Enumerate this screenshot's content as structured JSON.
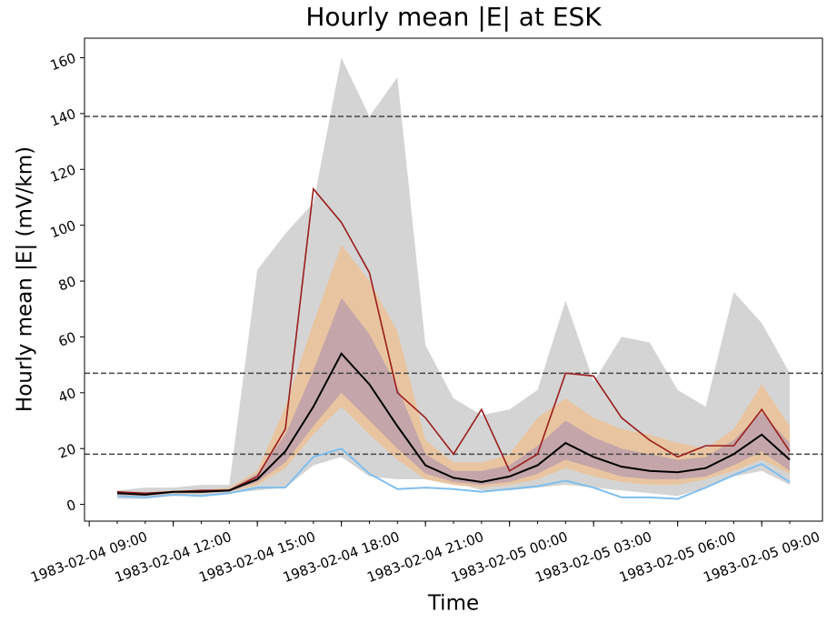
{
  "chart_data": {
    "type": "line",
    "title": "Hourly mean |E| at ESK",
    "x_label": "Time",
    "y_label": "Hourly mean |E| (mV/km)",
    "x": [
      "1983-02-04 10:00",
      "1983-02-04 11:00",
      "1983-02-04 12:00",
      "1983-02-04 13:00",
      "1983-02-04 14:00",
      "1983-02-04 15:00",
      "1983-02-04 16:00",
      "1983-02-04 17:00",
      "1983-02-04 18:00",
      "1983-02-04 19:00",
      "1983-02-04 20:00",
      "1983-02-04 21:00",
      "1983-02-04 22:00",
      "1983-02-04 23:00",
      "1983-02-05 00:00",
      "1983-02-05 01:00",
      "1983-02-05 02:00",
      "1983-02-05 03:00",
      "1983-02-05 04:00",
      "1983-02-05 05:00",
      "1983-02-05 06:00",
      "1983-02-05 07:00",
      "1983-02-05 08:00",
      "1983-02-05 09:00",
      "1983-02-05 10:00"
    ],
    "xlim": [
      "1983-02-04 08:50",
      "1983-02-05 11:10"
    ],
    "xticks": [
      "1983-02-04 09:00",
      "1983-02-04 12:00",
      "1983-02-04 15:00",
      "1983-02-04 18:00",
      "1983-02-04 21:00",
      "1983-02-05 00:00",
      "1983-02-05 03:00",
      "1983-02-05 06:00",
      "1983-02-05 09:00"
    ],
    "ylim": [
      -6,
      167
    ],
    "yticks": [
      0,
      20,
      40,
      60,
      80,
      100,
      120,
      140,
      160
    ],
    "hlines": [
      139,
      47,
      18
    ],
    "bands": [
      {
        "color": "#d4d4d4",
        "upper": [
          5,
          6,
          6,
          7,
          7,
          84,
          97,
          108,
          160,
          139,
          153,
          57,
          38,
          32,
          34,
          41,
          73,
          44,
          60,
          58,
          41,
          35,
          76,
          65,
          47
        ],
        "lower": [
          2,
          2,
          3,
          3,
          4,
          5,
          6,
          14,
          17,
          10,
          9,
          9,
          8,
          5,
          5,
          6,
          7,
          6,
          5,
          4,
          3,
          6,
          10,
          12,
          7
        ]
      },
      {
        "color": "#e8c5a0",
        "upper": [
          4.5,
          4,
          5,
          5,
          6,
          12,
          35,
          65,
          93,
          80,
          62,
          23,
          15,
          15,
          18,
          31,
          38,
          31,
          27,
          25,
          22,
          20,
          27,
          43,
          28
        ],
        "lower": [
          3,
          3,
          3.5,
          4,
          4.5,
          7,
          13,
          25,
          35,
          25,
          16,
          9,
          7,
          6,
          7,
          9,
          13,
          10,
          8,
          7,
          7,
          9,
          12,
          16,
          11
        ]
      },
      {
        "color": "#c4a6aa",
        "upper": [
          4,
          4,
          4.5,
          5,
          5.5,
          11,
          25,
          48,
          74,
          61,
          42,
          18,
          12,
          12,
          14,
          21,
          30,
          24,
          20,
          18,
          16,
          17,
          23,
          33,
          22
        ],
        "lower": [
          3.5,
          3,
          4,
          4,
          4.5,
          8,
          15,
          28,
          40,
          30,
          20,
          11,
          8,
          7,
          8,
          11,
          16,
          13,
          10,
          9,
          9,
          10,
          14,
          19,
          12
        ]
      }
    ],
    "series": [
      {
        "color": "#7fbfef",
        "values": [
          3,
          2.5,
          3.5,
          3,
          4,
          6,
          6,
          17,
          20,
          11,
          5.5,
          6,
          5.5,
          4.5,
          5.5,
          6.5,
          8.5,
          6,
          2.5,
          2.5,
          2,
          6,
          10.5,
          14.5,
          8
        ]
      },
      {
        "color": "#9b1c1c",
        "values": [
          4.5,
          4,
          4.5,
          5,
          5,
          10,
          27,
          113,
          101,
          83,
          40,
          31,
          18,
          34,
          12,
          18,
          47,
          46,
          31,
          23,
          17,
          21,
          21,
          34,
          19
        ]
      },
      {
        "color": "#000000",
        "values": [
          4,
          3.5,
          4.5,
          4.5,
          5,
          9,
          19,
          35,
          54,
          43,
          28,
          14,
          9.5,
          8,
          10,
          14,
          22,
          17,
          13.5,
          12,
          11.5,
          13,
          18,
          25,
          16
        ]
      }
    ]
  }
}
